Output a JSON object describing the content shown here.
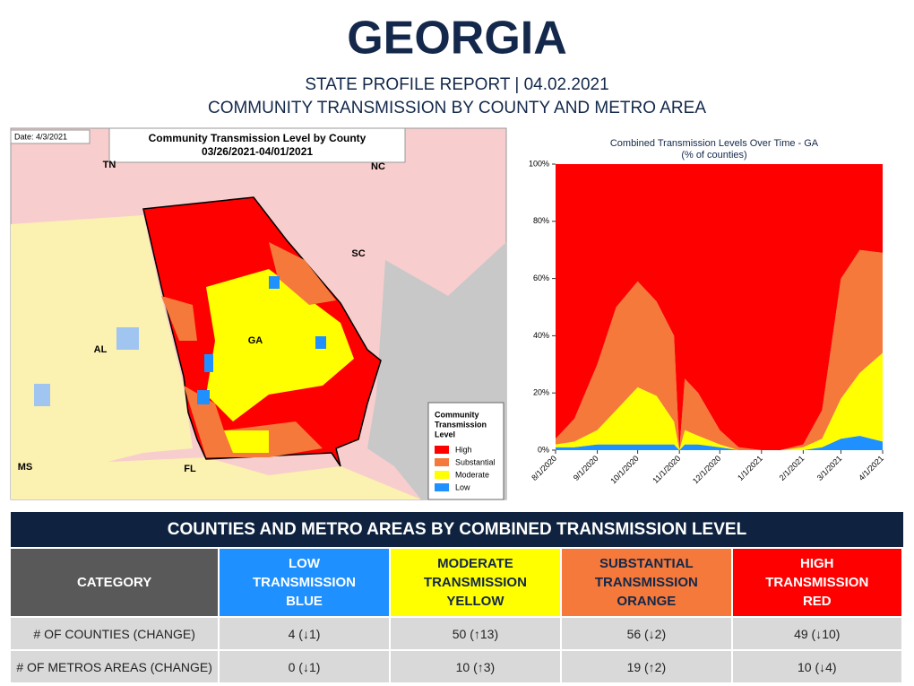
{
  "header": {
    "title": "GEORGIA",
    "subtitle": "STATE PROFILE REPORT | 04.02.2021",
    "subtitle2": "COMMUNITY TRANSMISSION BY COUNTY AND METRO AREA"
  },
  "map": {
    "date": "Date: 4/3/2021",
    "title": "Community Transmission Level by County",
    "range": "03/26/2021-04/01/2021",
    "states": [
      "TN",
      "NC",
      "SC",
      "AL",
      "GA",
      "MS",
      "FL"
    ],
    "legend_title": [
      "Community",
      "Transmission",
      "Level"
    ],
    "legend": [
      {
        "name": "High",
        "color": "#ff0000"
      },
      {
        "name": "Substantial",
        "color": "#f4793b"
      },
      {
        "name": "Moderate",
        "color": "#ffff00"
      },
      {
        "name": "Low",
        "color": "#1e90ff"
      }
    ]
  },
  "chart_data": {
    "type": "area",
    "title": "Combined Transmission Levels Over Time - GA",
    "subtitle": "(% of counties)",
    "x": [
      "8/1/2020",
      "8/15/2020",
      "9/1/2020",
      "9/15/2020",
      "10/1/2020",
      "10/15/2020",
      "10/28/2020",
      "11/1/2020",
      "11/5/2020",
      "11/15/2020",
      "12/1/2020",
      "12/15/2020",
      "1/1/2021",
      "1/15/2021",
      "2/1/2021",
      "2/15/2021",
      "3/1/2021",
      "3/15/2021",
      "4/1/2021"
    ],
    "series": [
      {
        "name": "Low",
        "color": "#1e90ff",
        "values": [
          1,
          1,
          2,
          2,
          2,
          2,
          2,
          0,
          2,
          2,
          1,
          0,
          0,
          0,
          0,
          1,
          4,
          5,
          3
        ]
      },
      {
        "name": "Moderate",
        "color": "#ffff00",
        "values": [
          1,
          2,
          5,
          12,
          20,
          17,
          8,
          0,
          5,
          3,
          1,
          0,
          0,
          0,
          1,
          3,
          14,
          22,
          31
        ]
      },
      {
        "name": "Substantial",
        "color": "#f4793b",
        "values": [
          2,
          8,
          23,
          36,
          37,
          33,
          30,
          0,
          18,
          15,
          5,
          1,
          0,
          0,
          1,
          10,
          42,
          43,
          35
        ]
      },
      {
        "name": "High",
        "color": "#ff0000",
        "values": [
          96,
          89,
          70,
          50,
          41,
          48,
          60,
          100,
          75,
          80,
          93,
          99,
          100,
          100,
          98,
          86,
          40,
          30,
          31
        ]
      }
    ],
    "xlim": [
      "8/1/2020",
      "4/1/2021"
    ],
    "xticks": [
      "8/1/2020",
      "9/1/2020",
      "10/1/2020",
      "11/1/2020",
      "12/1/2020",
      "1/1/2021",
      "2/1/2021",
      "3/1/2021",
      "4/1/2021"
    ],
    "ylim": [
      0,
      100
    ],
    "yticks": [
      {
        "value": 0,
        "label": "0%"
      },
      {
        "value": 20,
        "label": "20%"
      },
      {
        "value": 40,
        "label": "40%"
      },
      {
        "value": 60,
        "label": "60%"
      },
      {
        "value": 80,
        "label": "80%"
      },
      {
        "value": 100,
        "label": "100%"
      }
    ]
  },
  "table": {
    "title": "COUNTIES AND METRO AREAS BY COMBINED TRANSMISSION LEVEL",
    "columns": [
      [
        "CATEGORY"
      ],
      [
        "LOW",
        "TRANSMISSION",
        "BLUE"
      ],
      [
        "MODERATE",
        "TRANSMISSION",
        "YELLOW"
      ],
      [
        "SUBSTANTIAL",
        "TRANSMISSION",
        "ORANGE"
      ],
      [
        "HIGH",
        "TRANSMISSION",
        "RED"
      ]
    ],
    "rows": [
      [
        "# OF COUNTIES (CHANGE)",
        "4 (↓1)",
        "50 (↑13)",
        "56 (↓2)",
        "49 (↓10)"
      ],
      [
        "# OF METROS AREAS (CHANGE)",
        "0 (↓1)",
        "10 (↑3)",
        "19 (↑2)",
        "10 (↓4)"
      ]
    ]
  }
}
